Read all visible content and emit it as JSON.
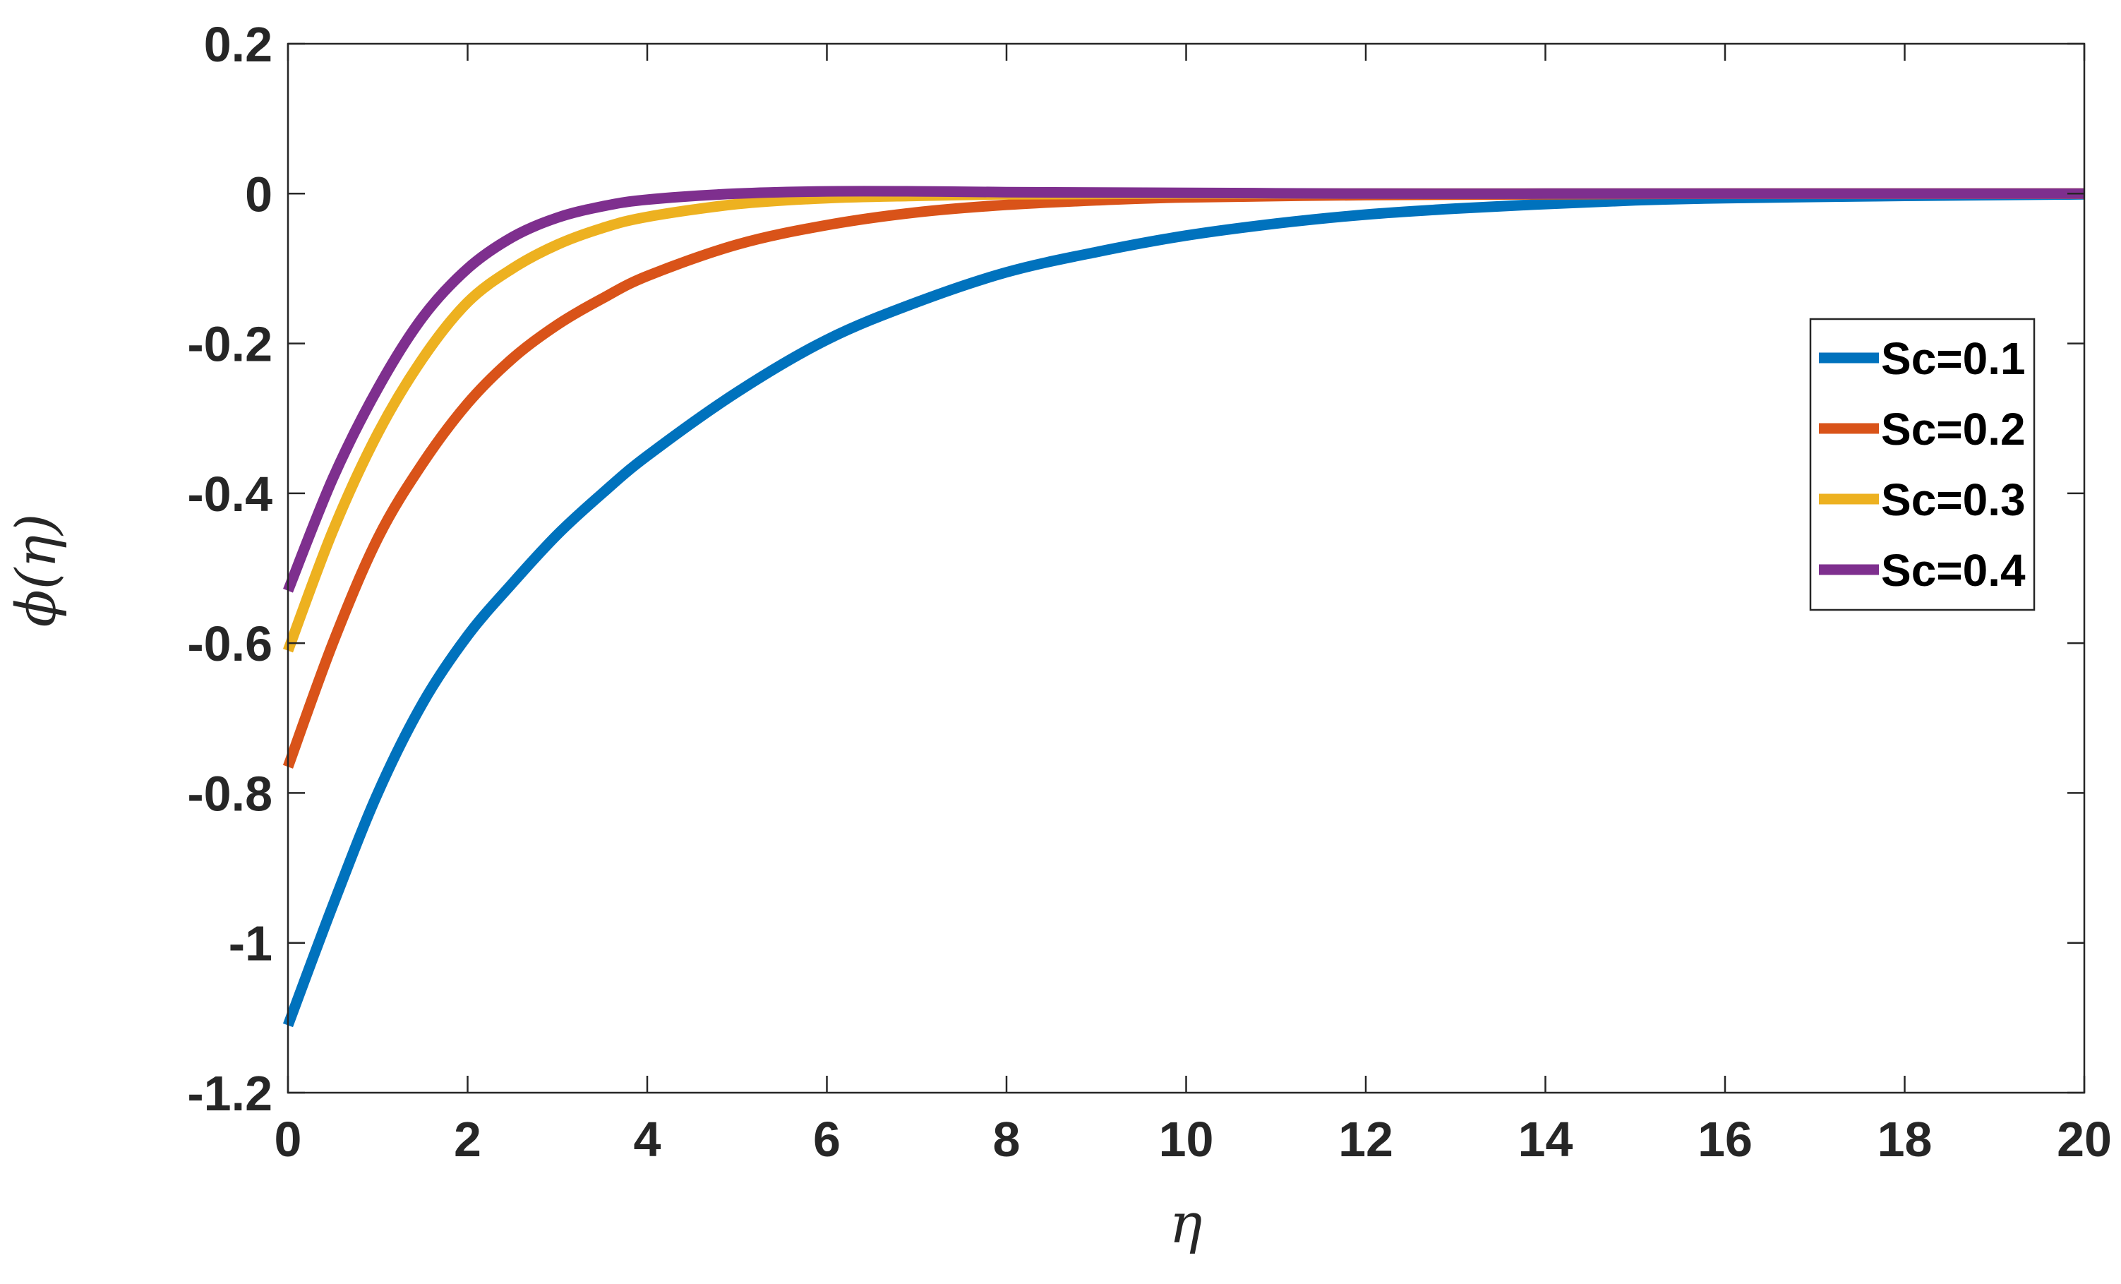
{
  "chart_data": {
    "type": "line",
    "title": "",
    "xlabel": "η",
    "ylabel": "ϕ(η)",
    "xlim": [
      0,
      20
    ],
    "ylim": [
      -1.2,
      0.2
    ],
    "xticks": [
      0,
      2,
      4,
      6,
      8,
      10,
      12,
      14,
      16,
      18,
      20
    ],
    "yticks": [
      0.2,
      0,
      -0.2,
      -0.4,
      -0.6,
      -0.8,
      -1,
      -1.2
    ],
    "xtick_labels": [
      "0",
      "2",
      "4",
      "6",
      "8",
      "10",
      "12",
      "14",
      "16",
      "18",
      "20"
    ],
    "ytick_labels": [
      "0.2",
      "0",
      "-0.2",
      "-0.4",
      "-0.6",
      "-0.8",
      "-1",
      "-1.2"
    ],
    "grid": false,
    "legend_position": "right",
    "series": [
      {
        "name": "Sc=0.1",
        "color": "#0072BD",
        "x": [
          0,
          0.5,
          1,
          1.5,
          2,
          2.5,
          3,
          3.5,
          4,
          5,
          6,
          7,
          8,
          9,
          10,
          11,
          12,
          13,
          14,
          15,
          16,
          18,
          20
        ],
        "y": [
          -1.11,
          -0.95,
          -0.8,
          -0.68,
          -0.59,
          -0.52,
          -0.455,
          -0.4,
          -0.35,
          -0.265,
          -0.195,
          -0.145,
          -0.105,
          -0.078,
          -0.056,
          -0.04,
          -0.028,
          -0.02,
          -0.014,
          -0.009,
          -0.006,
          -0.003,
          -0.001
        ]
      },
      {
        "name": "Sc=0.2",
        "color": "#D95319",
        "x": [
          0,
          0.5,
          1,
          1.5,
          2,
          2.5,
          3,
          3.5,
          4,
          5,
          6,
          7,
          8,
          9,
          10,
          12,
          14,
          16,
          18,
          20
        ],
        "y": [
          -0.765,
          -0.6,
          -0.46,
          -0.36,
          -0.28,
          -0.22,
          -0.175,
          -0.14,
          -0.11,
          -0.068,
          -0.042,
          -0.025,
          -0.015,
          -0.009,
          -0.005,
          -0.002,
          -0.001,
          0,
          0,
          0
        ]
      },
      {
        "name": "Sc=0.3",
        "color": "#EDB120",
        "x": [
          0,
          0.5,
          1,
          1.5,
          2,
          2.5,
          3,
          3.5,
          4,
          5,
          6,
          7,
          8,
          10,
          12,
          14,
          16,
          18,
          20
        ],
        "y": [
          -0.61,
          -0.45,
          -0.32,
          -0.22,
          -0.145,
          -0.1,
          -0.068,
          -0.046,
          -0.031,
          -0.014,
          -0.006,
          -0.003,
          -0.001,
          0,
          0,
          0,
          0,
          0,
          0
        ]
      },
      {
        "name": "Sc=0.4",
        "color": "#7E2F8E",
        "x": [
          0,
          0.5,
          1,
          1.5,
          2,
          2.5,
          3,
          3.5,
          4,
          5,
          6,
          7,
          8,
          10,
          12,
          14,
          16,
          18,
          20
        ],
        "y": [
          -0.53,
          -0.38,
          -0.26,
          -0.165,
          -0.1,
          -0.058,
          -0.032,
          -0.017,
          -0.008,
          0,
          0.003,
          0.003,
          0.002,
          0.001,
          0,
          0,
          0,
          0,
          0
        ]
      }
    ]
  }
}
